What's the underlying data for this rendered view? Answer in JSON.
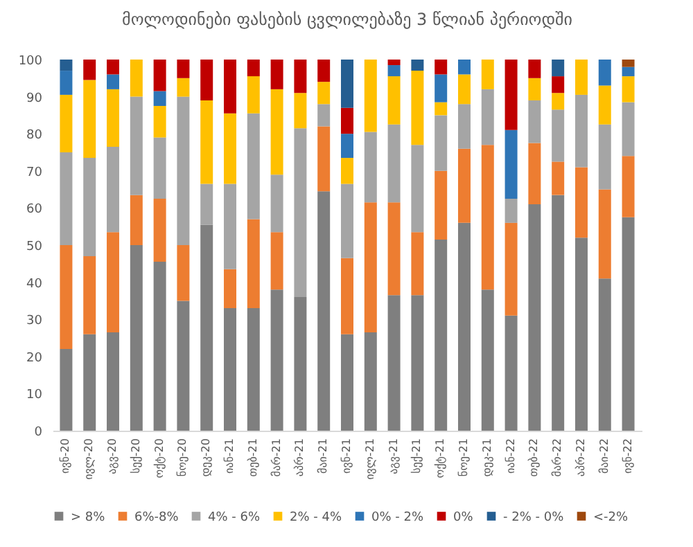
{
  "chart_data": {
    "type": "bar",
    "stacked": true,
    "title": "მოლოდინები ფასების ცვლილებაზე 3 წლიან პერიოდში",
    "categories": [
      "ივნ-20",
      "ივლ-20",
      "აგვ-20",
      "სექ-20",
      "ოქტ-20",
      "ნოე-20",
      "დეკ-20",
      "იან-21",
      "თებ-21",
      "მარ-21",
      "აპრ-21",
      "მაი-21",
      "ივნ-21",
      "ივლ-21",
      "აგვ-21",
      "სექ-21",
      "ოქტ-21",
      "ნოე-21",
      "დეკ-21",
      "იან-22",
      "თებ-22",
      "მარ-22",
      "აპრ-22",
      "მაი-22",
      "ივნ-22"
    ],
    "series": [
      {
        "name": "> 8%",
        "color": "#7f7f7f",
        "values": [
          22,
          26,
          26.5,
          50,
          45.5,
          35,
          55.5,
          33,
          33,
          38,
          36,
          64.5,
          26,
          26.5,
          36.5,
          36.5,
          51.5,
          56,
          38,
          31,
          61,
          63.5,
          52,
          41,
          57.5
        ]
      },
      {
        "name": "6%-8%",
        "color": "#ed7d31",
        "values": [
          28,
          21,
          27,
          13.5,
          17,
          15,
          null,
          10.5,
          24,
          15.5,
          null,
          17.5,
          20.5,
          35,
          25,
          17,
          18.5,
          20,
          39,
          25,
          16.5,
          9,
          19,
          24,
          16.5
        ]
      },
      {
        "name": "4% - 6%",
        "color": "#a5a5a5",
        "values": [
          25,
          26.5,
          23,
          26.5,
          16.5,
          40,
          11,
          23,
          28.5,
          15.5,
          45.5,
          6,
          20,
          19,
          21,
          23.5,
          15,
          12,
          15,
          6.5,
          11.5,
          14,
          19.5,
          17.5,
          14.5
        ]
      },
      {
        "name": "2% - 4%",
        "color": "#ffc000",
        "values": [
          15.5,
          21,
          15.5,
          10,
          8.5,
          5,
          22.5,
          19,
          10,
          23,
          9.5,
          6,
          7,
          19.5,
          13,
          20,
          3.5,
          8,
          8,
          null,
          6,
          4.5,
          9.5,
          10.5,
          7
        ]
      },
      {
        "name": "0% - 2%",
        "color": "#2e75b6",
        "values": [
          6.5,
          null,
          4,
          null,
          4,
          null,
          null,
          null,
          null,
          null,
          null,
          null,
          6.5,
          null,
          3,
          null,
          7.5,
          4,
          null,
          18.5,
          null,
          null,
          null,
          7,
          2.5
        ]
      },
      {
        "name": "0%",
        "color": "#c00000",
        "values": [
          null,
          5.5,
          4,
          null,
          8.5,
          5,
          11,
          14.5,
          4.5,
          8,
          9,
          6,
          7,
          null,
          1.5,
          null,
          4,
          null,
          null,
          19,
          5,
          4.5,
          null,
          null,
          null
        ]
      },
      {
        "name": "- 2% - 0%",
        "color": "#255e91",
        "values": [
          3,
          null,
          null,
          null,
          null,
          null,
          null,
          null,
          null,
          null,
          null,
          null,
          13,
          null,
          null,
          3,
          null,
          null,
          null,
          null,
          null,
          4.5,
          null,
          null,
          null
        ]
      },
      {
        "name": "<-2%",
        "color": "#9e480e",
        "values": [
          null,
          null,
          null,
          null,
          null,
          null,
          null,
          null,
          null,
          null,
          null,
          null,
          null,
          null,
          null,
          null,
          null,
          null,
          null,
          null,
          null,
          null,
          null,
          null,
          2
        ]
      }
    ],
    "ylim": [
      0,
      100
    ],
    "yticks": [
      0,
      10,
      20,
      30,
      40,
      50,
      60,
      70,
      80,
      90,
      100
    ],
    "grid": false,
    "legend": "bottom"
  }
}
